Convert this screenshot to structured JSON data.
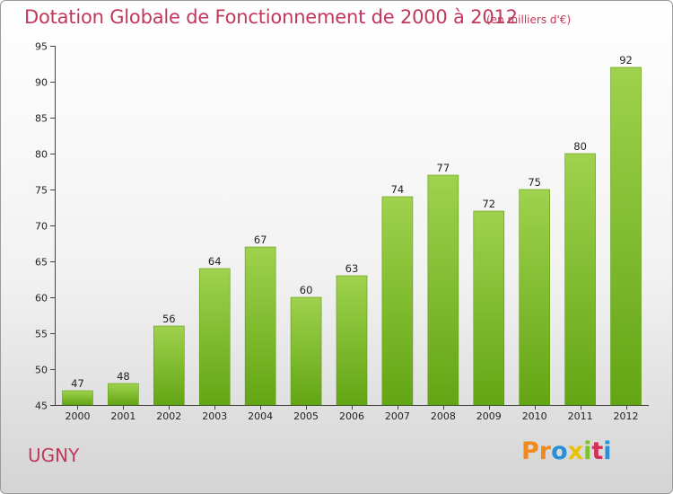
{
  "title": "Dotation Globale de Fonctionnement de 2000 à 2012",
  "subtitle": "(en milliers d'€)",
  "commune": "UGNY",
  "logo": {
    "letters": [
      "P",
      "r",
      "o",
      "x",
      "i",
      "t",
      "i"
    ],
    "colors": [
      "#f08a1c",
      "#f08a1c",
      "#2a8fd6",
      "#e8c20a",
      "#7cc22c",
      "#d6305a",
      "#2a8fd6"
    ]
  },
  "colors": {
    "bar_top": "#9fd24d",
    "bar_bottom": "#63a514",
    "title": "#c2385c"
  },
  "chart_data": {
    "type": "bar",
    "title": "Dotation Globale de Fonctionnement de 2000 à 2012",
    "subtitle": "(en milliers d'€)",
    "categories": [
      "2000",
      "2001",
      "2002",
      "2003",
      "2004",
      "2005",
      "2006",
      "2007",
      "2008",
      "2009",
      "2010",
      "2011",
      "2012"
    ],
    "values": [
      47,
      48,
      56,
      64,
      67,
      60,
      63,
      74,
      77,
      72,
      75,
      80,
      92
    ],
    "xlabel": "",
    "ylabel": "",
    "ylim": [
      45,
      95
    ],
    "yticks": [
      45,
      50,
      55,
      60,
      65,
      70,
      75,
      80,
      85,
      90,
      95
    ],
    "grid": false,
    "data_labels": true
  }
}
